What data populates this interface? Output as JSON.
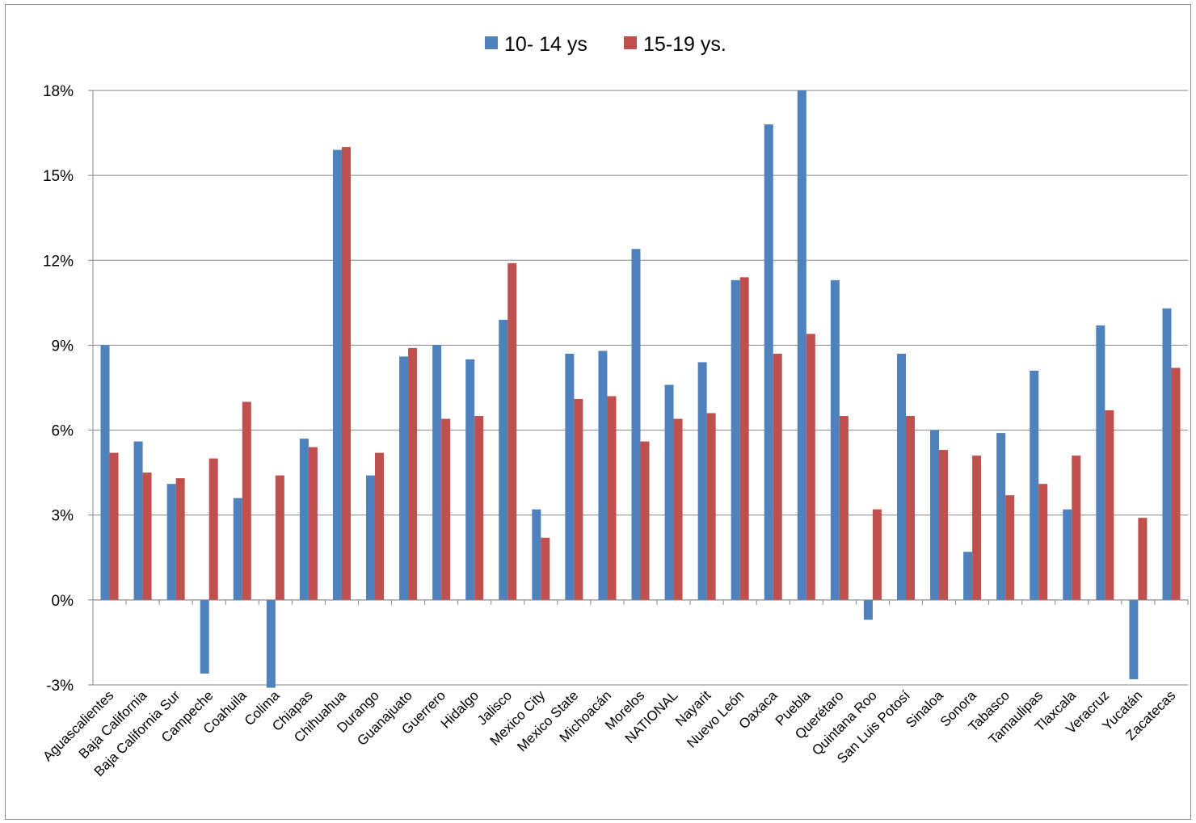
{
  "chart_data": {
    "type": "bar",
    "title": "",
    "xlabel": "",
    "ylabel": "",
    "ylim": [
      -3,
      18
    ],
    "yticks": [
      "-3%",
      "0%",
      "3%",
      "6%",
      "9%",
      "12%",
      "15%",
      "18%"
    ],
    "ytick_values": [
      -3,
      0,
      3,
      6,
      9,
      12,
      15,
      18
    ],
    "grid": "horizontal",
    "legend_position": "top-center",
    "categories": [
      "Aguascalientes",
      "Baja California",
      "Baja California Sur",
      "Campeche",
      "Coahuila",
      "Colima",
      "Chiapas",
      "Chihuahua",
      "Durango",
      "Guanajuato",
      "Guerrero",
      "Hidalgo",
      "Jalisco",
      "Mexico City",
      "Mexico State",
      "Michoacán",
      "Morelos",
      "NATIONAL",
      "Nayarit",
      "Nuevo León",
      "Oaxaca",
      "Puebla",
      "Querétaro",
      "Quintana Roo",
      "San Luis Potosí",
      "Sinaloa",
      "Sonora",
      "Tabasco",
      "Tamaulipas",
      "Tlaxcala",
      "Veracruz",
      "Yucatán",
      "Zacatecas"
    ],
    "series": [
      {
        "name": "10- 14 ys",
        "color": "#4f81bd",
        "values": [
          9.0,
          5.6,
          4.1,
          -2.6,
          3.6,
          -3.1,
          5.7,
          15.9,
          4.4,
          8.6,
          9.0,
          8.5,
          9.9,
          3.2,
          8.7,
          8.8,
          12.4,
          7.6,
          8.4,
          11.3,
          16.8,
          18.0,
          11.3,
          -0.7,
          8.7,
          6.0,
          1.7,
          5.9,
          8.1,
          3.2,
          9.7,
          -2.8,
          10.3
        ]
      },
      {
        "name": "15-19 ys.",
        "color": "#c0504d",
        "values": [
          5.2,
          4.5,
          4.3,
          5.0,
          7.0,
          4.4,
          5.4,
          16.0,
          5.2,
          8.9,
          6.4,
          6.5,
          11.9,
          2.2,
          7.1,
          7.2,
          5.6,
          6.4,
          6.6,
          11.4,
          8.7,
          9.4,
          6.5,
          3.2,
          6.5,
          5.3,
          5.1,
          3.7,
          4.1,
          5.1,
          6.7,
          2.9,
          8.2
        ]
      }
    ]
  }
}
